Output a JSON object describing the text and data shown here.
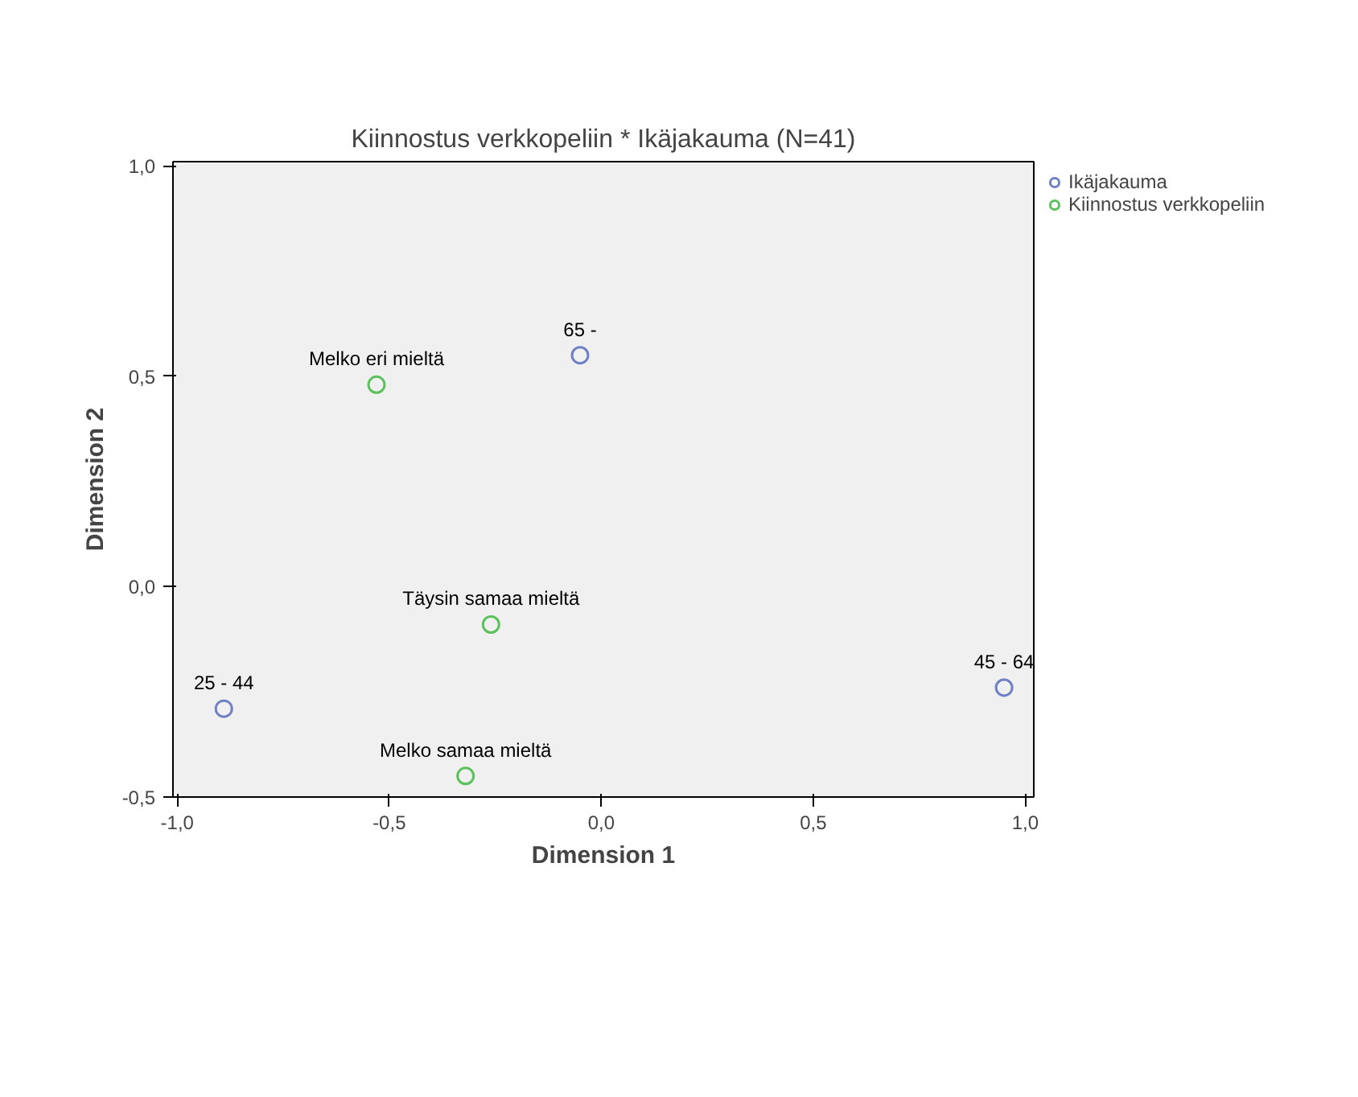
{
  "chart_data": {
    "type": "scatter",
    "title": "Kiinnostus verkkopeliin * Ikäjakauma (N=41)",
    "xlabel": "Dimension 1",
    "ylabel": "Dimension 2",
    "series": [
      {
        "name": "Ikäjakauma",
        "color": "#6f80c4",
        "x": [
          -0.05,
          -0.89,
          0.95
        ],
        "values": [
          0.55,
          -0.29,
          -0.24
        ]
      },
      {
        "name": "Kiinnostus verkkopeliin",
        "color": "#5cc15c",
        "x": [
          -0.53,
          -0.26,
          -0.32
        ],
        "values": [
          0.48,
          -0.09,
          -0.45
        ]
      }
    ],
    "annotations": [
      {
        "text": "65 -",
        "x": -0.05,
        "y": 0.55
      },
      {
        "text": "25 - 44",
        "x": -0.89,
        "y": -0.29
      },
      {
        "text": "45 - 64",
        "x": 0.95,
        "y": -0.24
      },
      {
        "text": "Melko eri mieltä",
        "x": -0.53,
        "y": 0.48
      },
      {
        "text": "Täysin samaa mieltä",
        "x": -0.26,
        "y": -0.09
      },
      {
        "text": "Melko samaa mieltä",
        "x": -0.32,
        "y": -0.45
      }
    ],
    "xlim": [
      -1.01,
      1.02
    ],
    "ylim": [
      -0.5,
      1.01
    ],
    "xticks": [
      {
        "value": -1.0,
        "label": "-1,0"
      },
      {
        "value": -0.5,
        "label": "-0,5"
      },
      {
        "value": 0.0,
        "label": "0,0"
      },
      {
        "value": 0.5,
        "label": "0,5"
      },
      {
        "value": 1.0,
        "label": "1,0"
      }
    ],
    "yticks": [
      {
        "value": -0.5,
        "label": "-0,5"
      },
      {
        "value": 0.0,
        "label": "0,0"
      },
      {
        "value": 0.5,
        "label": "0,5"
      },
      {
        "value": 1.0,
        "label": "1,0"
      }
    ],
    "marker": "circle",
    "grid": false,
    "legend": "top right"
  }
}
